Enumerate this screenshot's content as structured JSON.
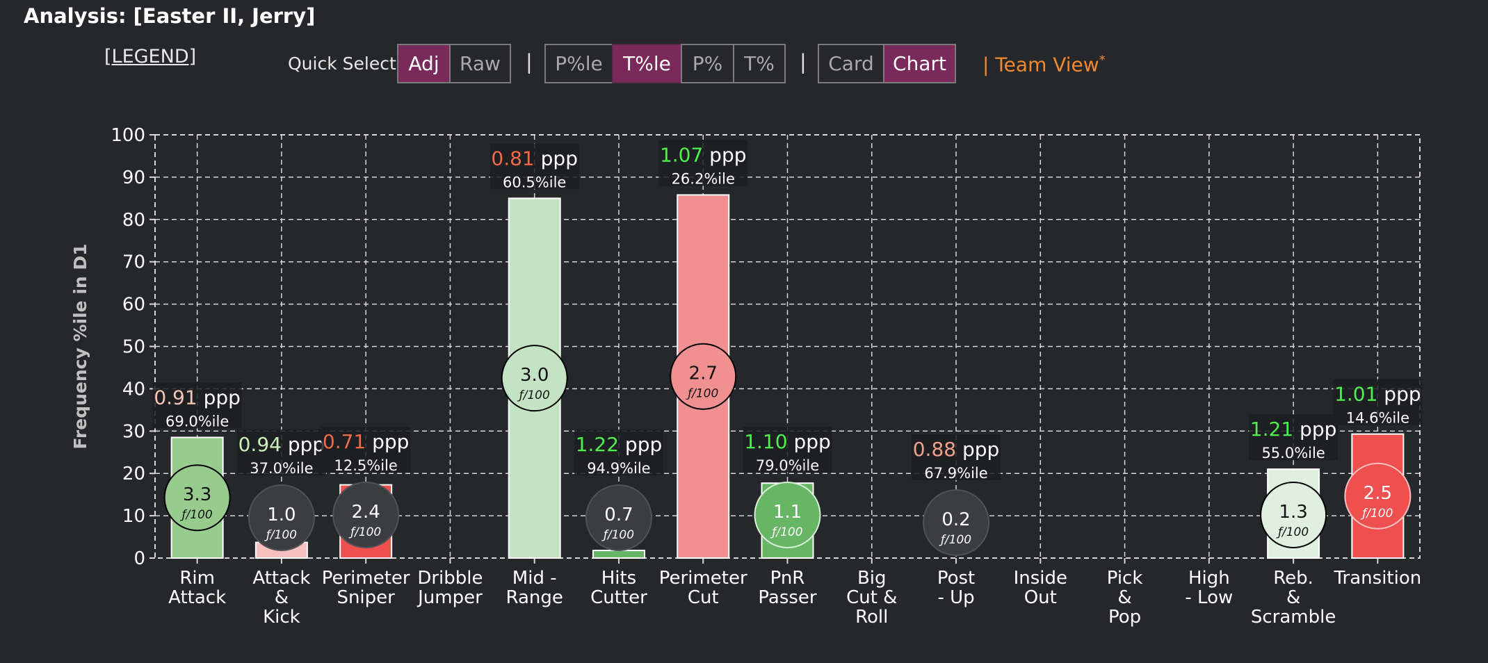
{
  "page": {
    "title": "Analysis: [Easter II, Jerry]",
    "legend_link": "[LEGEND]",
    "quick_select_label": "Quick Select:",
    "separator": "|",
    "buttons": {
      "adj": "Adj",
      "raw": "Raw",
      "pctile_player": "P%le",
      "pctile_team": "T%le",
      "pct_player": "P%",
      "pct_team": "T%",
      "card": "Card",
      "chart": "Chart"
    },
    "active_buttons": [
      "adj",
      "pctile_team",
      "chart"
    ],
    "team_view": "| Team View",
    "team_view_mark": "*"
  },
  "colors": {
    "background": "#25272b",
    "active_button": "#7a2a5a",
    "team_view": "#f08a2e",
    "good_text": "#4ef04e",
    "bad_text": "#f06a4a"
  },
  "chart_data": {
    "type": "bar",
    "ylabel": "Frequency %ile in D1",
    "ylim": [
      0,
      100
    ],
    "yticks": [
      0,
      10,
      20,
      30,
      40,
      50,
      60,
      70,
      80,
      90,
      100
    ],
    "grid": true,
    "freq_unit": "ƒ/100",
    "categories": [
      {
        "label": [
          "Rim",
          "Attack"
        ],
        "value": 28.5,
        "color": "#98cc8e",
        "ppp": "0.91",
        "ppp_color": "#f3c4b4",
        "pctile": "69.0%ile",
        "freq": "3.3",
        "bubble_fill": "#98cc8e",
        "bubble_stroke": "#000000",
        "bubble_text": "#111111"
      },
      {
        "label": [
          "Attack",
          "&",
          "Kick"
        ],
        "value": 3.7,
        "color": "#f6c0c0",
        "ppp": "0.94",
        "ppp_color": "#c8f0b8",
        "pctile": "37.0%ile",
        "freq": "1.0",
        "bubble_fill": "#3b3d41",
        "bubble_stroke": "#505257",
        "bubble_text": "#ffffff"
      },
      {
        "label": [
          "Perimeter",
          "Sniper"
        ],
        "value": 17.3,
        "color": "#ee5050",
        "ppp": "0.71",
        "ppp_color": "#f06a4a",
        "pctile": "12.5%ile",
        "freq": "2.4",
        "bubble_fill": "#3b3d41",
        "bubble_stroke": "#505257",
        "bubble_text": "#ffffff"
      },
      {
        "label": [
          "Dribble",
          "Jumper"
        ],
        "value": null
      },
      {
        "label": [
          "Mid -",
          "Range"
        ],
        "value": 85.0,
        "color": "#c4e2c4",
        "ppp": "0.81",
        "ppp_color": "#f06a4a",
        "pctile": "60.5%ile",
        "freq": "3.0",
        "bubble_fill": "#c4e2c4",
        "bubble_stroke": "#000000",
        "bubble_text": "#111111"
      },
      {
        "label": [
          "Hits",
          "Cutter"
        ],
        "value": 1.8,
        "color": "#66b666",
        "ppp": "1.22",
        "ppp_color": "#4ef04e",
        "pctile": "94.9%ile",
        "freq": "0.7",
        "bubble_fill": "#3b3d41",
        "bubble_stroke": "#505257",
        "bubble_text": "#ffffff"
      },
      {
        "label": [
          "Perimeter",
          "Cut"
        ],
        "value": 85.8,
        "color": "#f09090",
        "ppp": "1.07",
        "ppp_color": "#4ef04e",
        "pctile": "26.2%ile",
        "freq": "2.7",
        "bubble_fill": "#f09090",
        "bubble_stroke": "#000000",
        "bubble_text": "#111111"
      },
      {
        "label": [
          "PnR",
          "Passer"
        ],
        "value": 17.7,
        "color": "#66b666",
        "ppp": "1.10",
        "ppp_color": "#4ef04e",
        "pctile": "79.0%ile",
        "freq": "1.1",
        "bubble_fill": "#66b666",
        "bubble_stroke": "#d8efd8",
        "bubble_text": "#ffffff"
      },
      {
        "label": [
          "Big",
          "Cut &",
          "Roll"
        ],
        "value": null
      },
      {
        "label": [
          "Post",
          "- Up"
        ],
        "value": null,
        "ppp": "0.88",
        "ppp_color": "#f3a08a",
        "pctile": "67.9%ile",
        "freq": "0.2",
        "bubble_fill": "#3b3d41",
        "bubble_stroke": "#505257",
        "bubble_text": "#ffffff",
        "bubble_ref": 15.6
      },
      {
        "label": [
          "Inside",
          "Out"
        ],
        "value": null
      },
      {
        "label": [
          "Pick",
          "&",
          "Pop"
        ],
        "value": null
      },
      {
        "label": [
          "High",
          "- Low"
        ],
        "value": null
      },
      {
        "label": [
          "Reb.",
          "&",
          "Scramble"
        ],
        "value": 21.0,
        "color": "#e0f0e0",
        "ppp": "1.21",
        "ppp_color": "#4ef04e",
        "pctile": "55.0%ile",
        "freq": "1.3",
        "bubble_fill": "#e0f0e0",
        "bubble_stroke": "#000000",
        "bubble_text": "#111111"
      },
      {
        "label": [
          "Transition"
        ],
        "value": 29.3,
        "color": "#ee5050",
        "ppp": "1.01",
        "ppp_color": "#4ef04e",
        "pctile": "14.6%ile",
        "freq": "2.5",
        "bubble_fill": "#ee5050",
        "bubble_stroke": "#f6c0c0",
        "bubble_text": "#ffffff"
      }
    ]
  }
}
